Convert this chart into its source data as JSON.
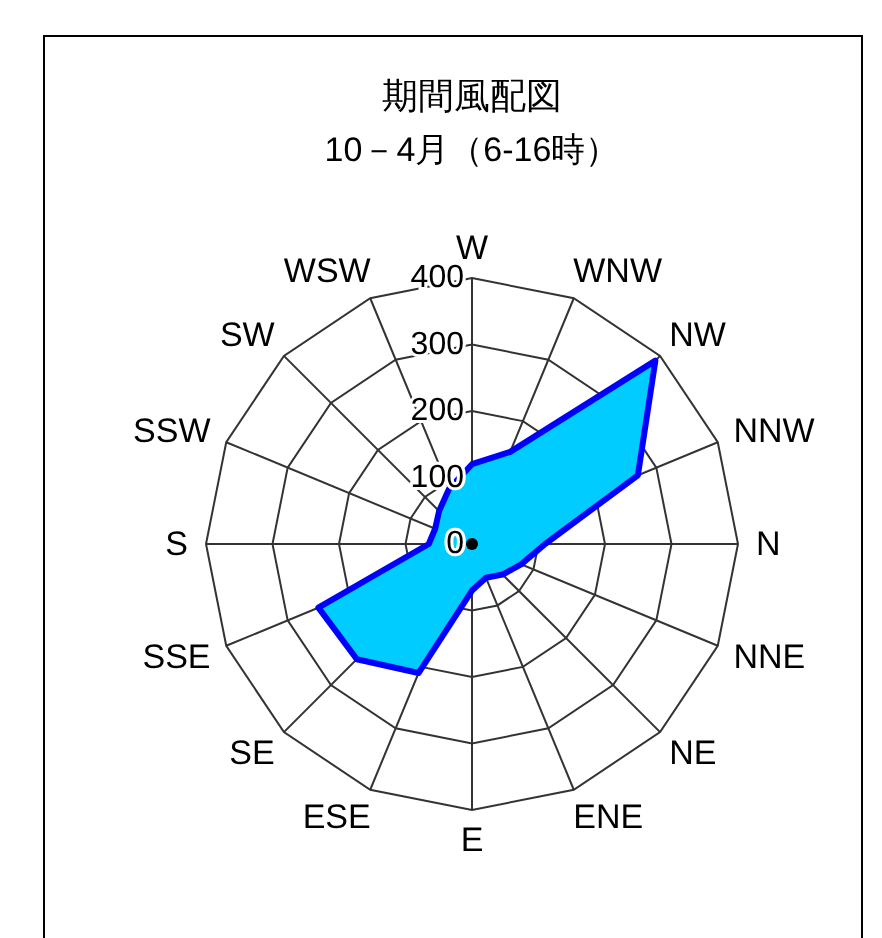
{
  "chart_data": {
    "type": "radar",
    "title": "期間風配図",
    "subtitle": "10－4月（6-16時）",
    "categories": [
      "W",
      "WNW",
      "NW",
      "NNW",
      "N",
      "NNE",
      "NE",
      "ENE",
      "E",
      "ESE",
      "SE",
      "SSE",
      "S",
      "SSW",
      "SW",
      "WSW"
    ],
    "series": [
      {
        "color": "#00ccff",
        "values": [
          120,
          150,
          390,
          270,
          110,
          80,
          65,
          55,
          70,
          210,
          245,
          250,
          65,
          60,
          70,
          90
        ]
      }
    ],
    "ylim": [
      0,
      400
    ],
    "yticks": [
      0,
      100,
      200,
      300,
      400
    ],
    "grid": true
  }
}
